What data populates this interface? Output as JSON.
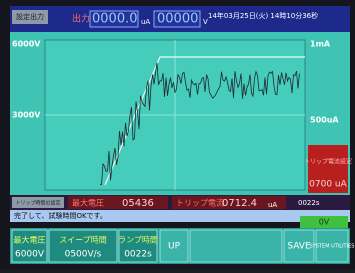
{
  "header": {
    "setting_button": "設定出力",
    "output_label": "出力",
    "current_value": "0000.0",
    "current_unit": "uA",
    "voltage_value": "00000",
    "voltage_unit": "V",
    "datetime": "14年03月25日(火) 14時10分36秒"
  },
  "graph": {
    "left_labels": [
      "6000V",
      "3000V"
    ],
    "right_labels": [
      "1mA",
      "500uA"
    ]
  },
  "side_panel": {
    "label": "トリップ電流設定",
    "value": "0700 uA"
  },
  "status": {
    "trip_time_button": "トリップ時間の設定",
    "max_voltage_label": "最大電圧",
    "max_voltage_value": "05436",
    "trip_current_label": "トリップ電流",
    "trip_current_value": "0712.4",
    "trip_current_unit": "uA",
    "time_value": "0022s"
  },
  "message": "完了して、試験時間OKです。",
  "voltage_indicator": "0V",
  "buttons": [
    {
      "label": "最大電圧",
      "value": "6000V"
    },
    {
      "label": "スイープ時間",
      "value": "0500V/s"
    },
    {
      "label": "ランプ時間",
      "value": "0022s"
    },
    {
      "label": "UP"
    },
    {
      "label": "SAVE"
    },
    {
      "label": "SYSTEM UTILITIES"
    }
  ]
}
